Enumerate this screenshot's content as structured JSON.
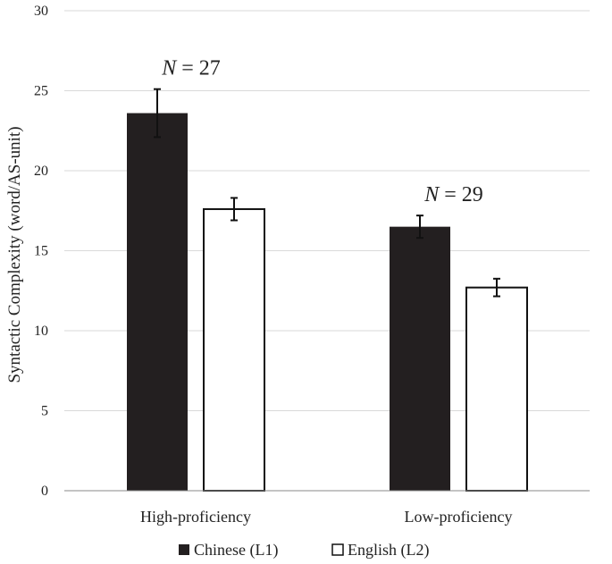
{
  "chart_data": {
    "type": "bar",
    "title": "",
    "xlabel": "",
    "ylabel": "Syntactic Complexity (word/AS-unit)",
    "ylim": [
      0,
      30
    ],
    "yticks": [
      0,
      5,
      10,
      15,
      20,
      25,
      30
    ],
    "grid": true,
    "legend_position": "bottom",
    "categories": [
      "High-proficiency",
      "Low-proficiency"
    ],
    "series": [
      {
        "name": "Chinese (L1)",
        "values": [
          23.6,
          16.5
        ],
        "errors": [
          1.5,
          0.7
        ],
        "color": "#231f20"
      },
      {
        "name": "English (L2)",
        "values": [
          17.6,
          12.7
        ],
        "errors": [
          0.7,
          0.55
        ],
        "color": "#ffffff"
      }
    ],
    "annotations": [
      {
        "italic": "N",
        "text": " = 27",
        "category": 0
      },
      {
        "italic": "N",
        "text": " = 29",
        "category": 1
      }
    ]
  }
}
